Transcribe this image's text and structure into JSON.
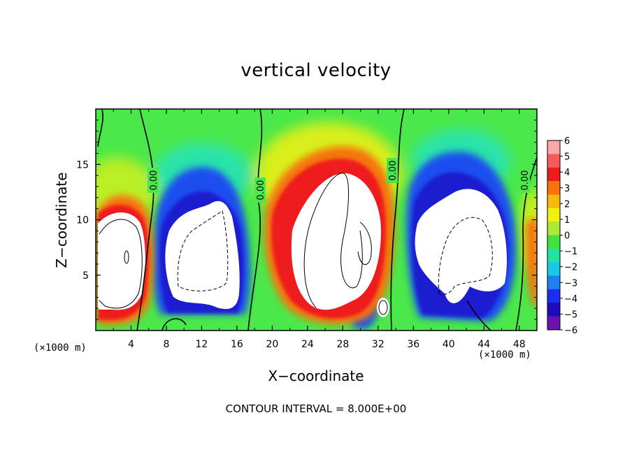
{
  "chart_data": {
    "type": "heatmap",
    "title": "vertical velocity",
    "xlabel": "X−coordinate",
    "ylabel": "Z−coordinate",
    "x_unit_left": "(×1000 m)",
    "x_unit_right": "(×1000 m)",
    "xlim": [
      0,
      50
    ],
    "ylim": [
      0,
      20
    ],
    "x_ticks": [
      4,
      8,
      12,
      16,
      20,
      24,
      28,
      32,
      36,
      40,
      44,
      48
    ],
    "x_tick_labels": [
      "4",
      "8",
      "12",
      "16",
      "20",
      "24",
      "28",
      "32",
      "36",
      "40",
      "44",
      "48"
    ],
    "y_ticks": [
      5,
      10,
      15
    ],
    "y_tick_labels": [
      "5",
      "10",
      "15"
    ],
    "colorbar": {
      "levels": [
        6,
        5,
        4,
        3,
        2,
        1,
        0,
        -1,
        -2,
        -3,
        -4,
        -5,
        -6
      ],
      "labels": [
        "6",
        "5",
        "4",
        "3",
        "2",
        "1",
        "0",
        "−1",
        "−2",
        "−3",
        "−4",
        "−5",
        "−6"
      ],
      "colors": [
        "#f9a7a7",
        "#f55b5b",
        "#ee1b1b",
        "#f6740b",
        "#f7b90e",
        "#f0f011",
        "#abe83a",
        "#3fe240",
        "#24e2a5",
        "#19c7e8",
        "#1f80ef",
        "#1a2ef0",
        "#1a0cb8",
        "#6c10b0"
      ]
    },
    "contour_labels": [
      "0.00",
      "0.00",
      "0.00",
      "0.00",
      "0.00"
    ],
    "contour_interval_text": "CONTOUR INTERVAL = 8.000E+00",
    "cells": [
      {
        "x": 3.0,
        "z": 7.0,
        "w": 6
      },
      {
        "x": 13.5,
        "z": 8.0,
        "w": -6
      },
      {
        "x": 27.0,
        "z": 10.0,
        "w": 6
      },
      {
        "x": 40.5,
        "z": 8.0,
        "w": -6
      },
      {
        "x": 49.5,
        "z": 6.0,
        "w": 6
      }
    ]
  }
}
